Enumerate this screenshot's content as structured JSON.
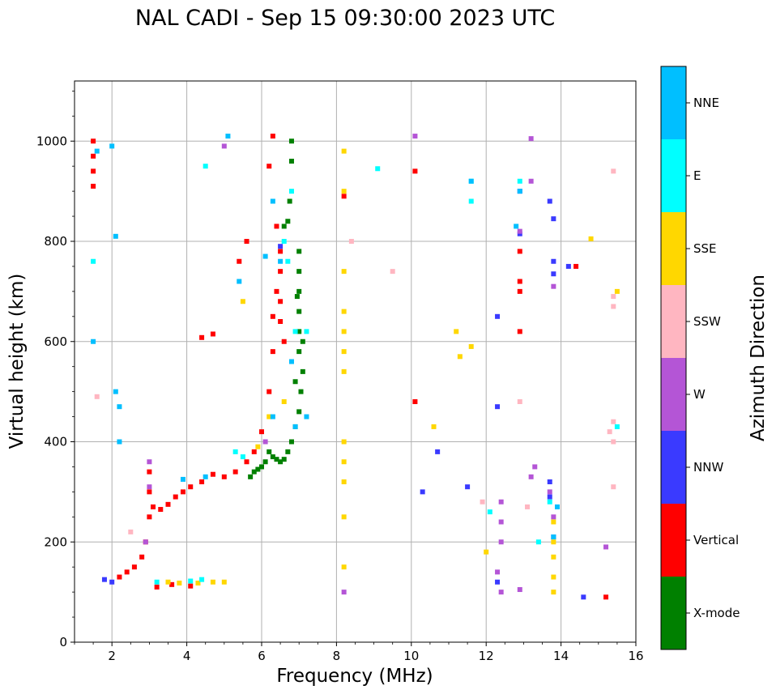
{
  "chart_data": {
    "type": "scatter",
    "title": "NAL CADI - Sep 15 09:30:00 2023 UTC",
    "xlabel": "Frequency (MHz)",
    "ylabel": "Virtual height (km)",
    "xlim": [
      1,
      16
    ],
    "ylim": [
      0,
      1120
    ],
    "xticks": [
      2,
      4,
      6,
      8,
      10,
      12,
      14,
      16
    ],
    "xtick_labels": [
      "2",
      "4",
      "6",
      "8",
      "10",
      "12",
      "14",
      "16"
    ],
    "yticks": [
      0,
      200,
      400,
      600,
      800,
      1000
    ],
    "ytick_labels": [
      "0",
      "200",
      "400",
      "600",
      "800",
      "1000"
    ],
    "grid": true,
    "colorbar": {
      "label": "Azimuth Direction",
      "categories": [
        "X-mode",
        "Vertical",
        "NNW",
        "W",
        "SSW",
        "SSE",
        "E",
        "NNE"
      ],
      "colors": [
        "#008000",
        "#ff0000",
        "#3a3aff",
        "#b455d6",
        "#ffb6c1",
        "#ffd700",
        "#00ffff",
        "#00bfff"
      ]
    },
    "series": [
      {
        "name": "X-mode",
        "points": [
          [
            6.2,
            380
          ],
          [
            6.3,
            370
          ],
          [
            6.4,
            365
          ],
          [
            6.5,
            360
          ],
          [
            6.6,
            365
          ],
          [
            6.7,
            380
          ],
          [
            6.8,
            400
          ],
          [
            6.9,
            430
          ],
          [
            7.0,
            460
          ],
          [
            7.05,
            500
          ],
          [
            7.1,
            540
          ],
          [
            7.0,
            580
          ],
          [
            7.0,
            620
          ],
          [
            7.0,
            660
          ],
          [
            7.0,
            700
          ],
          [
            7.0,
            740
          ],
          [
            7.0,
            780
          ],
          [
            6.8,
            1000
          ],
          [
            6.8,
            960
          ],
          [
            6.0,
            350
          ],
          [
            5.9,
            345
          ],
          [
            5.8,
            340
          ],
          [
            6.1,
            360
          ],
          [
            6.75,
            880
          ],
          [
            6.7,
            840
          ],
          [
            6.6,
            830
          ],
          [
            7.1,
            600
          ],
          [
            6.9,
            520
          ],
          [
            5.7,
            330
          ],
          [
            6.95,
            690
          ]
        ]
      },
      {
        "name": "Vertical",
        "points": [
          [
            1.5,
            1000
          ],
          [
            1.5,
            970
          ],
          [
            1.5,
            940
          ],
          [
            1.5,
            910
          ],
          [
            2.2,
            130
          ],
          [
            2.4,
            140
          ],
          [
            2.6,
            150
          ],
          [
            2.8,
            170
          ],
          [
            2.9,
            200
          ],
          [
            3.0,
            250
          ],
          [
            3.0,
            300
          ],
          [
            3.0,
            340
          ],
          [
            3.1,
            270
          ],
          [
            3.3,
            265
          ],
          [
            3.5,
            275
          ],
          [
            3.7,
            290
          ],
          [
            3.9,
            300
          ],
          [
            4.1,
            310
          ],
          [
            4.4,
            320
          ],
          [
            4.7,
            335
          ],
          [
            5.0,
            330
          ],
          [
            5.3,
            340
          ],
          [
            5.6,
            360
          ],
          [
            5.8,
            380
          ],
          [
            6.0,
            420
          ],
          [
            6.2,
            500
          ],
          [
            6.3,
            580
          ],
          [
            6.3,
            650
          ],
          [
            6.4,
            700
          ],
          [
            6.5,
            740
          ],
          [
            6.5,
            780
          ],
          [
            6.4,
            830
          ],
          [
            3.2,
            110
          ],
          [
            3.6,
            115
          ],
          [
            4.1,
            112
          ],
          [
            12.9,
            620
          ],
          [
            12.9,
            700
          ],
          [
            12.9,
            720
          ],
          [
            12.9,
            780
          ],
          [
            6.6,
            600
          ],
          [
            6.5,
            680
          ],
          [
            5.6,
            800
          ],
          [
            5.4,
            760
          ],
          [
            4.4,
            608
          ],
          [
            4.7,
            615
          ],
          [
            15.2,
            90
          ],
          [
            14.4,
            750
          ],
          [
            6.2,
            950
          ],
          [
            6.3,
            1010
          ],
          [
            10.1,
            480
          ],
          [
            8.2,
            890
          ],
          [
            10.1,
            940
          ],
          [
            6.5,
            640
          ]
        ]
      },
      {
        "name": "NNW",
        "points": [
          [
            12.9,
            900
          ],
          [
            12.9,
            815
          ],
          [
            13.8,
            845
          ],
          [
            13.8,
            760
          ],
          [
            13.8,
            735
          ],
          [
            13.7,
            320
          ],
          [
            13.7,
            290
          ],
          [
            13.8,
            210
          ],
          [
            12.3,
            470
          ],
          [
            12.3,
            120
          ],
          [
            14.6,
            90
          ],
          [
            2.0,
            120
          ],
          [
            1.8,
            125
          ],
          [
            10.3,
            300
          ],
          [
            10.7,
            380
          ],
          [
            11.5,
            310
          ],
          [
            12.3,
            650
          ],
          [
            6.5,
            790
          ],
          [
            13.7,
            880
          ],
          [
            14.2,
            750
          ]
        ]
      },
      {
        "name": "W",
        "points": [
          [
            12.4,
            280
          ],
          [
            12.4,
            240
          ],
          [
            12.4,
            200
          ],
          [
            12.3,
            140
          ],
          [
            12.4,
            100
          ],
          [
            13.7,
            300
          ],
          [
            13.8,
            250
          ],
          [
            13.2,
            1005
          ],
          [
            13.2,
            920
          ],
          [
            13.3,
            350
          ],
          [
            13.2,
            330
          ],
          [
            12.9,
            820
          ],
          [
            10.1,
            1010
          ],
          [
            13.8,
            710
          ],
          [
            12.9,
            105
          ],
          [
            15.2,
            190
          ],
          [
            2.9,
            200
          ],
          [
            3.0,
            310
          ],
          [
            8.2,
            100
          ],
          [
            6.1,
            400
          ],
          [
            5.0,
            990
          ],
          [
            3.0,
            360
          ]
        ]
      },
      {
        "name": "SSW",
        "points": [
          [
            15.4,
            940
          ],
          [
            15.4,
            690
          ],
          [
            15.4,
            670
          ],
          [
            15.4,
            440
          ],
          [
            15.4,
            400
          ],
          [
            15.4,
            310
          ],
          [
            8.4,
            800
          ],
          [
            9.5,
            740
          ],
          [
            15.3,
            420
          ],
          [
            12.9,
            480
          ],
          [
            13.1,
            270
          ],
          [
            2.5,
            220
          ],
          [
            1.6,
            490
          ],
          [
            11.9,
            280
          ]
        ]
      },
      {
        "name": "SSE",
        "points": [
          [
            8.2,
            980
          ],
          [
            8.2,
            900
          ],
          [
            8.2,
            740
          ],
          [
            8.2,
            660
          ],
          [
            8.2,
            620
          ],
          [
            8.2,
            580
          ],
          [
            8.2,
            540
          ],
          [
            8.2,
            400
          ],
          [
            8.2,
            360
          ],
          [
            8.2,
            320
          ],
          [
            8.2,
            250
          ],
          [
            8.2,
            150
          ],
          [
            13.8,
            240
          ],
          [
            13.8,
            200
          ],
          [
            13.8,
            170
          ],
          [
            13.8,
            130
          ],
          [
            13.8,
            100
          ],
          [
            15.5,
            700
          ],
          [
            14.8,
            805
          ],
          [
            11.2,
            620
          ],
          [
            11.3,
            570
          ],
          [
            10.6,
            430
          ],
          [
            5.0,
            120
          ],
          [
            4.7,
            120
          ],
          [
            4.3,
            118
          ],
          [
            3.8,
            118
          ],
          [
            3.5,
            120
          ],
          [
            6.2,
            450
          ],
          [
            5.9,
            390
          ],
          [
            5.5,
            680
          ],
          [
            6.6,
            480
          ],
          [
            11.6,
            590
          ],
          [
            12.0,
            180
          ]
        ]
      },
      {
        "name": "E",
        "points": [
          [
            15.5,
            430
          ],
          [
            13.7,
            280
          ],
          [
            13.4,
            200
          ],
          [
            12.9,
            920
          ],
          [
            11.6,
            880
          ],
          [
            11.6,
            920
          ],
          [
            9.1,
            945
          ],
          [
            6.8,
            900
          ],
          [
            6.6,
            800
          ],
          [
            4.5,
            950
          ],
          [
            3.2,
            120
          ],
          [
            4.1,
            122
          ],
          [
            4.4,
            125
          ],
          [
            5.3,
            380
          ],
          [
            5.5,
            370
          ],
          [
            6.7,
            760
          ],
          [
            7.2,
            620
          ],
          [
            1.5,
            760
          ],
          [
            12.1,
            260
          ],
          [
            6.9,
            620
          ]
        ]
      },
      {
        "name": "NNE",
        "points": [
          [
            12.9,
            900
          ],
          [
            12.8,
            830
          ],
          [
            13.8,
            210
          ],
          [
            13.9,
            270
          ],
          [
            2.2,
            400
          ],
          [
            2.2,
            470
          ],
          [
            2.1,
            500
          ],
          [
            2.1,
            810
          ],
          [
            2.0,
            990
          ],
          [
            1.6,
            980
          ],
          [
            6.1,
            770
          ],
          [
            6.3,
            880
          ],
          [
            6.5,
            760
          ],
          [
            5.4,
            720
          ],
          [
            5.1,
            1010
          ],
          [
            4.5,
            330
          ],
          [
            3.9,
            325
          ],
          [
            7.2,
            450
          ],
          [
            6.9,
            430
          ],
          [
            6.8,
            560
          ],
          [
            6.3,
            450
          ],
          [
            1.5,
            600
          ],
          [
            11.6,
            920
          ]
        ]
      }
    ]
  }
}
